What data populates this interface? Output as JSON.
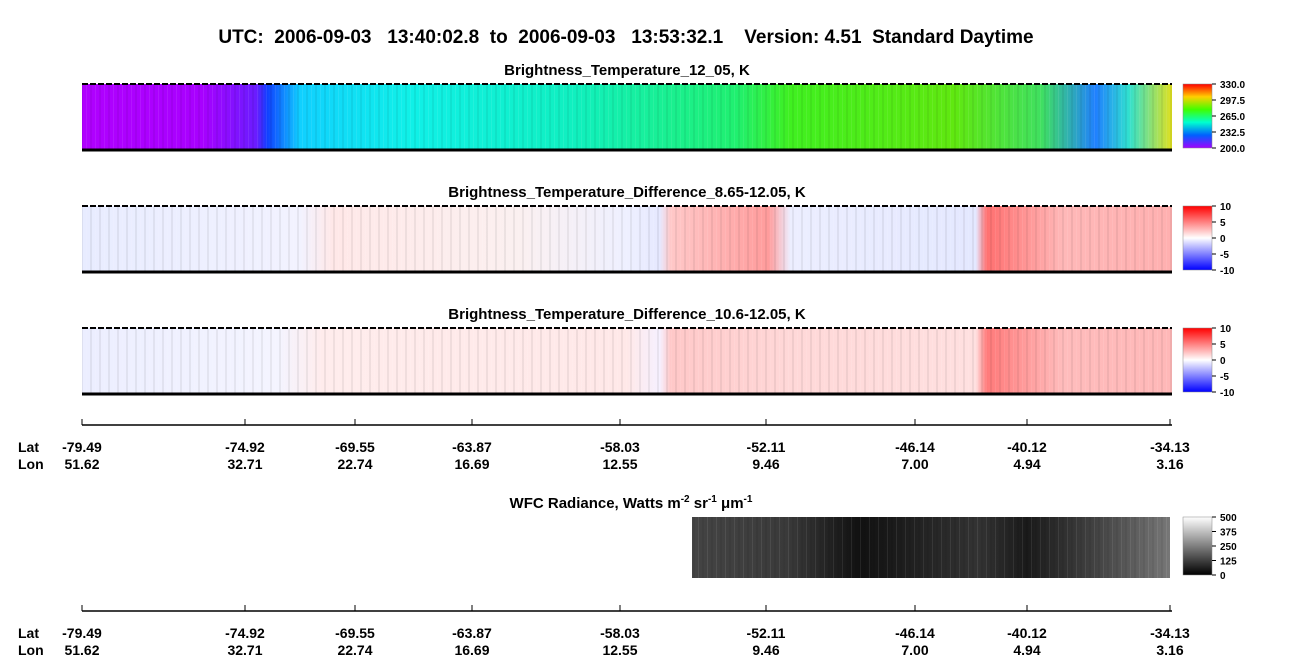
{
  "header": {
    "title": "UTC:  2006-09-03   13:40:02.8  to  2006-09-03   13:53:32.1    Version: 4.51  Standard Daytime"
  },
  "panels": [
    {
      "title": "Brightness_Temperature_12_05, K",
      "colorbar": [
        "330.0",
        "297.5",
        "265.0",
        "232.5",
        "200.0"
      ]
    },
    {
      "title": "Brightness_Temperature_Difference_8.65-12.05, K",
      "colorbar": [
        "10",
        "5",
        "0",
        "-5",
        "-10"
      ]
    },
    {
      "title": "Brightness_Temperature_Difference_10.6-12.05, K",
      "colorbar": [
        "10",
        "5",
        "0",
        "-5",
        "-10"
      ]
    }
  ],
  "wfc": {
    "title_parts": [
      "WFC Radiance, Watts m",
      "-2",
      " sr",
      "-1",
      " μm",
      "-1"
    ],
    "colorbar": [
      "500",
      "375",
      "250",
      "125",
      "0"
    ]
  },
  "axes": [
    {
      "lat_label": "Lat",
      "lon_label": "Lon",
      "lat": [
        "-79.49",
        "-74.92",
        "-69.55",
        "-63.87",
        "-58.03",
        "-52.11",
        "-46.14",
        "-40.12",
        "-34.13"
      ],
      "lon": [
        "51.62",
        "32.71",
        "22.74",
        "16.69",
        "12.55",
        "9.46",
        "7.00",
        "4.94",
        "3.16"
      ]
    },
    {
      "lat_label": "Lat",
      "lon_label": "Lon",
      "lat": [
        "-79.49",
        "-74.92",
        "-69.55",
        "-63.87",
        "-58.03",
        "-52.11",
        "-46.14",
        "-40.12",
        "-34.13"
      ],
      "lon": [
        "51.62",
        "32.71",
        "22.74",
        "16.69",
        "12.55",
        "9.46",
        "7.00",
        "4.94",
        "3.16"
      ]
    }
  ]
}
